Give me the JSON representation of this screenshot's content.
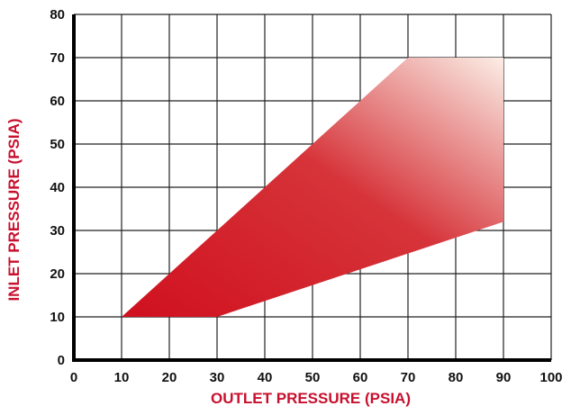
{
  "chart_data": {
    "type": "area",
    "xlabel": "OUTLET PRESSURE (PSIA)",
    "ylabel": "INLET PRESSURE (PSIA)",
    "xlim": [
      0,
      100
    ],
    "ylim": [
      0,
      80
    ],
    "x_ticks": [
      "0",
      "10",
      "20",
      "30",
      "40",
      "50",
      "60",
      "70",
      "80",
      "90",
      "100"
    ],
    "y_ticks": [
      "0",
      "10",
      "20",
      "30",
      "40",
      "50",
      "60",
      "70",
      "80"
    ],
    "grid": true,
    "region": [
      {
        "x": 10,
        "y": 10
      },
      {
        "x": 70,
        "y": 70
      },
      {
        "x": 90,
        "y": 70
      },
      {
        "x": 90,
        "y": 32
      },
      {
        "x": 30,
        "y": 10
      }
    ]
  },
  "colors": {
    "label": "#c8102e",
    "fill_start": "#d0101e",
    "fill_mid": "#d6343a",
    "fill_end": "#fbeee6",
    "grid": "#222222",
    "axis": "#000000"
  }
}
